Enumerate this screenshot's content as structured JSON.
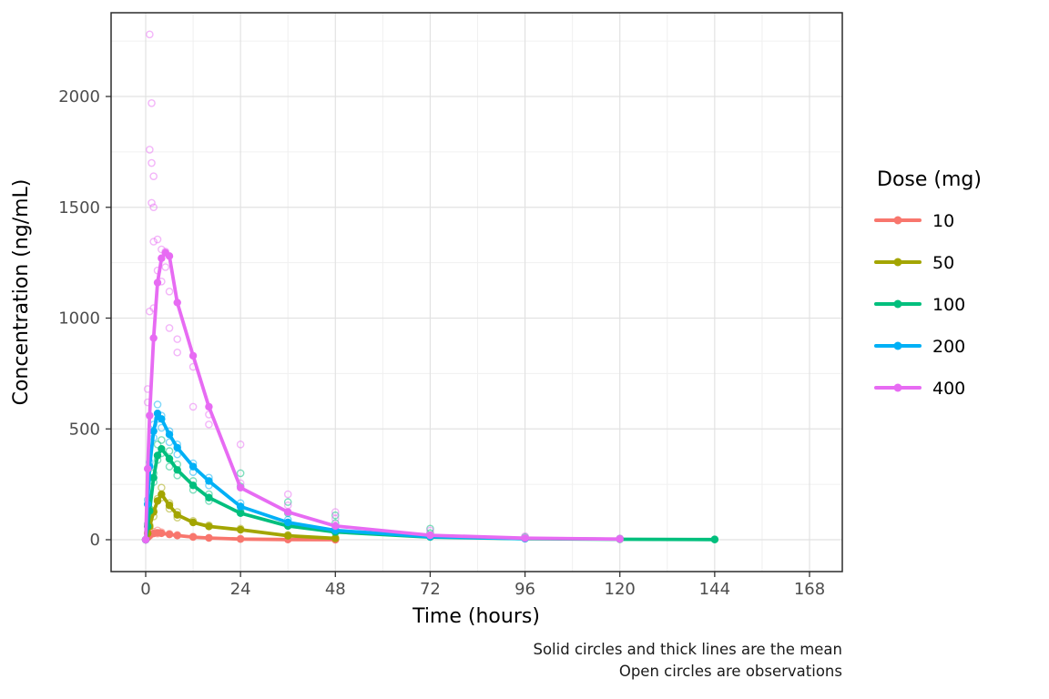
{
  "chart_data": {
    "type": "line",
    "title": "",
    "xlabel": "Time (hours)",
    "ylabel": "Concentration (ng/mL)",
    "xlim": [
      0,
      168
    ],
    "ylim": [
      0,
      2000
    ],
    "x_ticks": [
      0,
      24,
      48,
      72,
      96,
      120,
      144,
      168
    ],
    "y_ticks": [
      0,
      500,
      1000,
      1500,
      2000
    ],
    "x_minor": [
      12,
      36,
      60,
      84,
      108,
      132,
      156
    ],
    "y_minor": [
      250,
      750,
      1250,
      1750,
      2250
    ],
    "grid": true,
    "legend": {
      "title": "Dose (mg)",
      "position": "right",
      "entries": [
        "10",
        "50",
        "100",
        "200",
        "400"
      ]
    },
    "caption": [
      "Solid circles and thick lines are the mean",
      "Open circles are observations"
    ],
    "colors": {
      "panel_background": "#FFFFFF",
      "grid_major": "#E2E2E2",
      "grid_minor": "#F0F0F0",
      "panel_border": "#2B2B2B",
      "tick_mark": "#333333",
      "tick_text": "#4D4D4D"
    },
    "series": [
      {
        "name": "10",
        "color": "#F8766D",
        "mean": {
          "t": [
            0,
            0.5,
            1,
            2,
            3,
            4,
            6,
            8,
            12,
            16,
            24,
            36,
            48
          ],
          "v": [
            0,
            10,
            20,
            28,
            31,
            29,
            24,
            19,
            12,
            8,
            3,
            1,
            0
          ]
        },
        "obs": [
          [
            0.5,
            12
          ],
          [
            1,
            26
          ],
          [
            1,
            18
          ],
          [
            2,
            36
          ],
          [
            3,
            42
          ],
          [
            3,
            28
          ],
          [
            4,
            34
          ],
          [
            6,
            27
          ],
          [
            8,
            22
          ],
          [
            12,
            14
          ],
          [
            16,
            9
          ],
          [
            24,
            5
          ],
          [
            36,
            2
          ],
          [
            48,
            1
          ]
        ]
      },
      {
        "name": "50",
        "color": "#A3A500",
        "mean": {
          "t": [
            0,
            0.5,
            1,
            2,
            3,
            4,
            6,
            8,
            12,
            16,
            24,
            36,
            48
          ],
          "v": [
            0,
            28,
            60,
            125,
            175,
            205,
            155,
            112,
            78,
            60,
            45,
            18,
            6
          ]
        },
        "obs": [
          [
            0.5,
            32
          ],
          [
            1,
            65
          ],
          [
            1,
            50
          ],
          [
            2,
            130
          ],
          [
            2,
            105
          ],
          [
            3,
            185
          ],
          [
            4,
            235
          ],
          [
            4,
            190
          ],
          [
            6,
            165
          ],
          [
            6,
            140
          ],
          [
            8,
            125
          ],
          [
            8,
            100
          ],
          [
            12,
            85
          ],
          [
            16,
            65
          ],
          [
            24,
            50
          ],
          [
            36,
            22
          ],
          [
            48,
            9
          ]
        ]
      },
      {
        "name": "100",
        "color": "#00BF7D",
        "mean": {
          "t": [
            0,
            0.5,
            1,
            2,
            3,
            4,
            6,
            8,
            12,
            16,
            24,
            36,
            48,
            72,
            96,
            120,
            144
          ],
          "v": [
            0,
            60,
            130,
            280,
            380,
            410,
            365,
            315,
            245,
            190,
            120,
            62,
            35,
            12,
            5,
            2,
            1
          ]
        },
        "obs": [
          [
            0.5,
            70
          ],
          [
            1,
            140
          ],
          [
            1,
            110
          ],
          [
            2,
            300
          ],
          [
            2,
            260
          ],
          [
            3,
            430
          ],
          [
            3,
            360
          ],
          [
            4,
            450
          ],
          [
            4,
            390
          ],
          [
            6,
            400
          ],
          [
            6,
            330
          ],
          [
            8,
            340
          ],
          [
            8,
            290
          ],
          [
            12,
            265
          ],
          [
            12,
            225
          ],
          [
            16,
            205
          ],
          [
            16,
            175
          ],
          [
            24,
            300
          ],
          [
            24,
            240
          ],
          [
            24,
            130
          ],
          [
            36,
            170
          ],
          [
            36,
            120
          ],
          [
            48,
            110
          ],
          [
            48,
            75
          ],
          [
            72,
            50
          ],
          [
            72,
            30
          ],
          [
            96,
            12
          ],
          [
            120,
            5
          ],
          [
            144,
            2
          ]
        ]
      },
      {
        "name": "200",
        "color": "#00B0F6",
        "mean": {
          "t": [
            0,
            0.5,
            1,
            2,
            3,
            4,
            6,
            8,
            12,
            16,
            24,
            36,
            48,
            72,
            96
          ],
          "v": [
            0,
            160,
            330,
            490,
            570,
            545,
            475,
            415,
            330,
            265,
            150,
            78,
            42,
            14,
            5
          ]
        },
        "obs": [
          [
            0.5,
            180
          ],
          [
            1,
            350
          ],
          [
            1,
            280
          ],
          [
            2,
            520
          ],
          [
            2,
            460
          ],
          [
            3,
            610
          ],
          [
            3,
            545
          ],
          [
            4,
            560
          ],
          [
            4,
            505
          ],
          [
            6,
            490
          ],
          [
            6,
            440
          ],
          [
            8,
            430
          ],
          [
            8,
            385
          ],
          [
            12,
            345
          ],
          [
            12,
            305
          ],
          [
            16,
            280
          ],
          [
            16,
            245
          ],
          [
            24,
            165
          ],
          [
            24,
            125
          ],
          [
            36,
            90
          ],
          [
            36,
            65
          ],
          [
            48,
            50
          ],
          [
            48,
            32
          ],
          [
            72,
            18
          ],
          [
            96,
            6
          ]
        ]
      },
      {
        "name": "400",
        "color": "#E76BF3",
        "mean": {
          "t": [
            0,
            0.5,
            1,
            2,
            3,
            4,
            5,
            6,
            8,
            12,
            16,
            24,
            36,
            48,
            72,
            96,
            120
          ],
          "v": [
            0,
            320,
            560,
            910,
            1160,
            1270,
            1295,
            1280,
            1070,
            830,
            600,
            235,
            125,
            62,
            20,
            7,
            3
          ]
        },
        "obs": [
          [
            1,
            2280
          ],
          [
            1.5,
            1970
          ],
          [
            1,
            1760
          ],
          [
            1.5,
            1700
          ],
          [
            2,
            1640
          ],
          [
            1.5,
            1520
          ],
          [
            2,
            1500
          ],
          [
            3,
            1355
          ],
          [
            2,
            1345
          ],
          [
            4,
            1310
          ],
          [
            5,
            1300
          ],
          [
            3,
            1215
          ],
          [
            4,
            1165
          ],
          [
            1,
            1030
          ],
          [
            2,
            1045
          ],
          [
            5,
            1230
          ],
          [
            6,
            1120
          ],
          [
            6,
            955
          ],
          [
            8,
            905
          ],
          [
            8,
            845
          ],
          [
            0.5,
            680
          ],
          [
            0.5,
            620
          ],
          [
            12,
            780
          ],
          [
            12,
            600
          ],
          [
            16,
            565
          ],
          [
            16,
            520
          ],
          [
            24,
            430
          ],
          [
            24,
            255
          ],
          [
            36,
            205
          ],
          [
            36,
            155
          ],
          [
            48,
            125
          ],
          [
            48,
            95
          ],
          [
            72,
            42
          ],
          [
            96,
            16
          ],
          [
            120,
            6
          ]
        ]
      }
    ]
  }
}
